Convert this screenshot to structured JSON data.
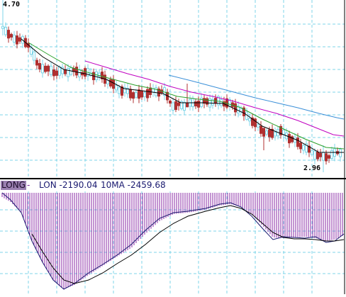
{
  "price_panel": {
    "high_label": "4.70",
    "low_label": "2.96"
  },
  "indicator_panel": {
    "tag": "LONG",
    "dash": "-",
    "lon_text": "LON -2190.04",
    "ma_text": "10MA -2459.68"
  },
  "colors": {
    "background": "#ffffff",
    "grid": "#7fd6e8",
    "divider": "#000000",
    "up_candle": "#7fd6e8",
    "down_candle": "#b03030",
    "ma_short": "#000000",
    "ma_mid": "#2aa02a",
    "ma_long": "#c000c0",
    "ma_longest": "#3a8fd8",
    "histogram": "#8a2aa6",
    "lon_line": "#1a1a70",
    "ma10_line": "#000000"
  },
  "chart_data": [
    {
      "type": "candlestick",
      "title": "",
      "annotations": [
        "4.70",
        "2.96"
      ],
      "ylim": [
        2.9,
        4.72
      ],
      "price_range": {
        "high": 4.7,
        "low": 2.96
      },
      "moving_averages": [
        {
          "color": "#000000"
        },
        {
          "color": "#2aa02a"
        },
        {
          "color": "#c000c0"
        },
        {
          "color": "#3a8fd8"
        }
      ],
      "grid": true
    },
    {
      "type": "bar",
      "title": "LONG",
      "series": [
        {
          "name": "LON",
          "last": -2190.04
        },
        {
          "name": "10MA",
          "last": -2459.68
        }
      ],
      "grid": true
    }
  ]
}
